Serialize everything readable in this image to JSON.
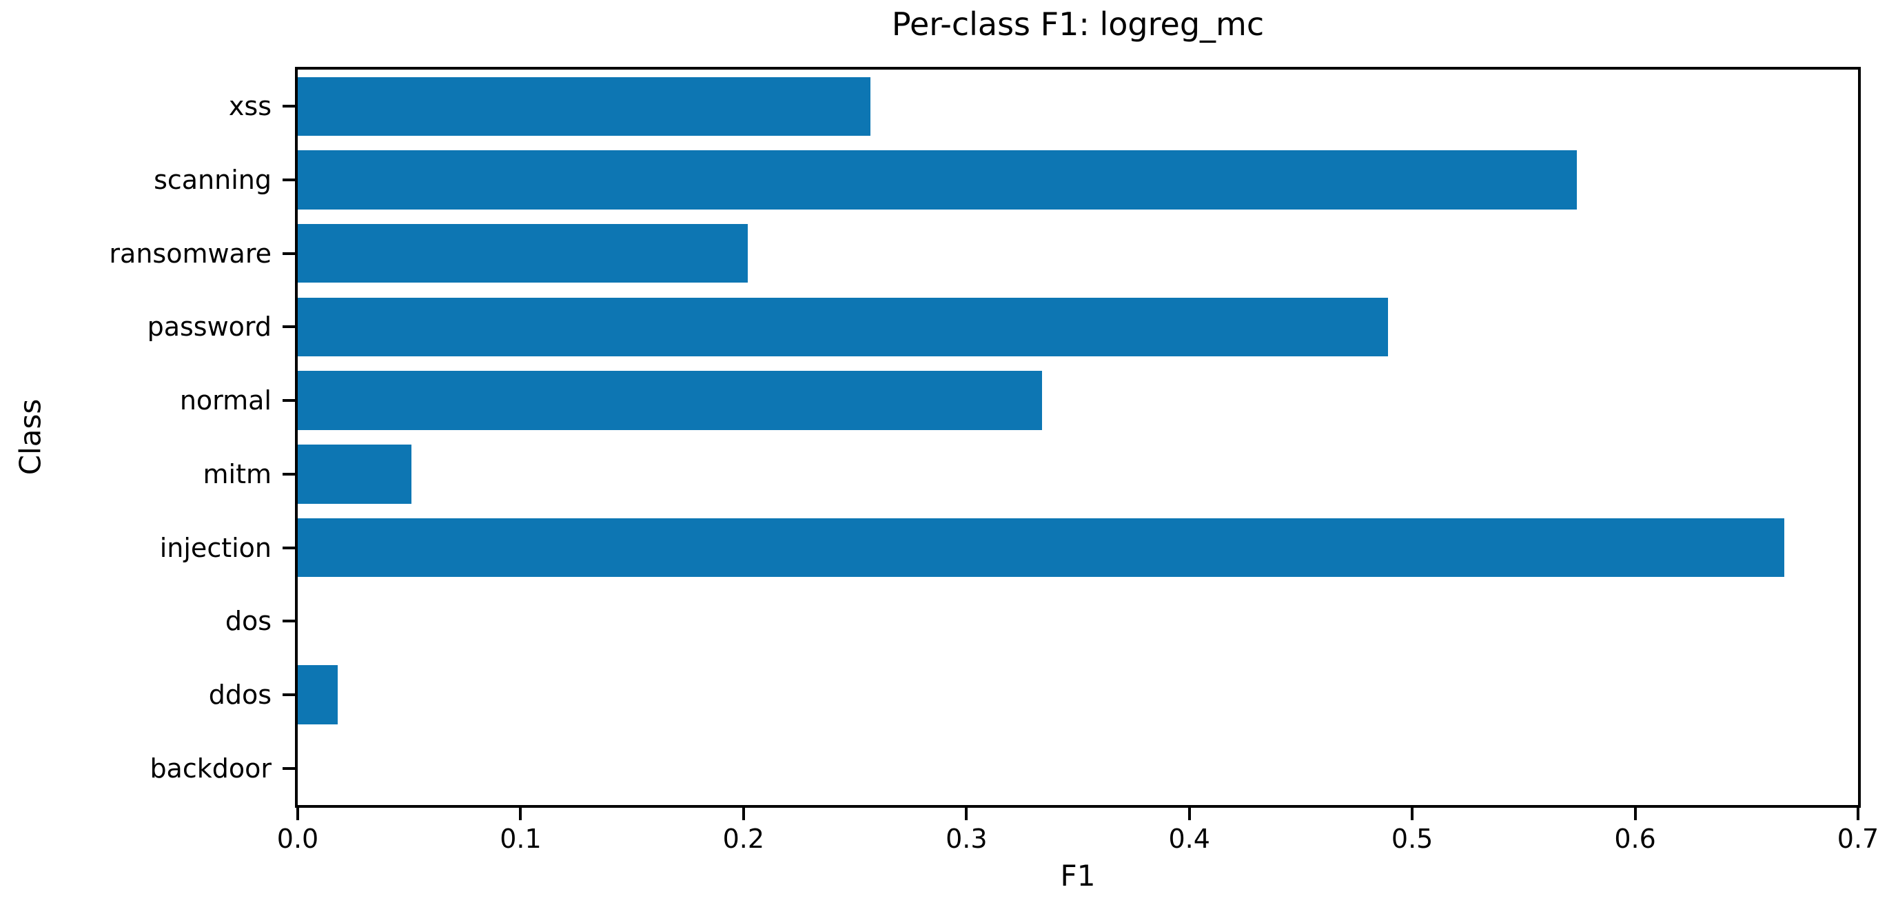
{
  "chart_data": {
    "type": "bar",
    "orientation": "horizontal",
    "title": "Per-class F1: logreg_mc",
    "xlabel": "F1",
    "ylabel": "Class",
    "categories_top_to_bottom": [
      "xss",
      "scanning",
      "ransomware",
      "password",
      "normal",
      "mitm",
      "injection",
      "dos",
      "ddos",
      "backdoor"
    ],
    "values_top_to_bottom": [
      0.257,
      0.574,
      0.202,
      0.489,
      0.334,
      0.051,
      0.667,
      0.0,
      0.018,
      0.0
    ],
    "xlim": [
      0.0,
      0.7
    ],
    "xticks": [
      0.0,
      0.1,
      0.2,
      0.3,
      0.4,
      0.5,
      0.6,
      0.7
    ],
    "xtick_labels": [
      "0.0",
      "0.1",
      "0.2",
      "0.3",
      "0.4",
      "0.5",
      "0.6",
      "0.7"
    ],
    "bar_color": "#0d76b3",
    "axis_color": "#000000",
    "background_color": "#ffffff",
    "grid": false,
    "legend": null,
    "bar_height_fraction": 0.8
  }
}
